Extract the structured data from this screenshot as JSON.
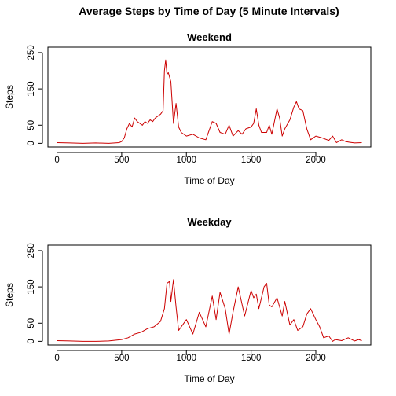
{
  "title": "Average Steps by Time of Day (5 Minute Intervals)",
  "colors": {
    "line": "#cc0000",
    "axis": "#000000"
  },
  "chart_data": [
    {
      "type": "line",
      "title": "Weekend",
      "xlabel": "Time of Day",
      "ylabel": "Steps",
      "xlim": [
        -70,
        2425
      ],
      "ylim": [
        -10,
        265
      ],
      "xticks": [
        0,
        500,
        1000,
        1500,
        2000
      ],
      "yticks": [
        0,
        50,
        150,
        250
      ],
      "grid": false,
      "series": [
        {
          "x": [
            0,
            100,
            200,
            300,
            400,
            480,
            500,
            520,
            540,
            560,
            580,
            600,
            620,
            640,
            660,
            680,
            700,
            720,
            740,
            760,
            780,
            800,
            820,
            830,
            840,
            850,
            860,
            880,
            900,
            920,
            940,
            960,
            1000,
            1050,
            1100,
            1150,
            1200,
            1230,
            1260,
            1300,
            1330,
            1360,
            1400,
            1430,
            1460,
            1500,
            1520,
            1540,
            1560,
            1580,
            1620,
            1640,
            1660,
            1700,
            1720,
            1740,
            1760,
            1800,
            1830,
            1850,
            1870,
            1900,
            1930,
            1960,
            2000,
            2050,
            2100,
            2130,
            2160,
            2200,
            2230,
            2260,
            2300,
            2355
          ],
          "y": [
            2,
            1,
            0,
            1,
            0,
            2,
            5,
            15,
            40,
            55,
            45,
            70,
            60,
            55,
            50,
            60,
            55,
            65,
            60,
            70,
            75,
            80,
            90,
            200,
            230,
            190,
            195,
            170,
            55,
            110,
            45,
            30,
            20,
            25,
            15,
            10,
            60,
            55,
            30,
            25,
            50,
            20,
            35,
            25,
            40,
            45,
            55,
            95,
            50,
            30,
            30,
            50,
            25,
            95,
            70,
            20,
            40,
            65,
            100,
            115,
            95,
            90,
            40,
            10,
            20,
            15,
            8,
            20,
            2,
            10,
            5,
            3,
            1,
            2
          ]
        }
      ]
    },
    {
      "type": "line",
      "title": "Weekday",
      "xlabel": "Time of Day",
      "ylabel": "Steps",
      "xlim": [
        -70,
        2425
      ],
      "ylim": [
        -10,
        265
      ],
      "xticks": [
        0,
        500,
        1000,
        1500,
        2000
      ],
      "yticks": [
        0,
        50,
        150,
        250
      ],
      "grid": false,
      "series": [
        {
          "x": [
            0,
            100,
            200,
            300,
            400,
            450,
            500,
            550,
            600,
            650,
            700,
            750,
            800,
            830,
            850,
            870,
            880,
            900,
            920,
            940,
            960,
            1000,
            1050,
            1100,
            1150,
            1200,
            1230,
            1260,
            1300,
            1330,
            1360,
            1400,
            1450,
            1500,
            1520,
            1540,
            1560,
            1600,
            1620,
            1640,
            1660,
            1700,
            1740,
            1760,
            1800,
            1830,
            1860,
            1900,
            1930,
            1960,
            2000,
            2030,
            2060,
            2100,
            2130,
            2150,
            2200,
            2250,
            2300,
            2330,
            2355
          ],
          "y": [
            2,
            1,
            0,
            0,
            1,
            3,
            5,
            10,
            20,
            25,
            35,
            40,
            55,
            90,
            160,
            165,
            110,
            170,
            95,
            30,
            40,
            60,
            20,
            80,
            40,
            125,
            60,
            135,
            90,
            20,
            80,
            150,
            70,
            140,
            120,
            130,
            90,
            150,
            160,
            100,
            95,
            120,
            70,
            110,
            45,
            60,
            30,
            40,
            75,
            90,
            60,
            40,
            10,
            15,
            0,
            5,
            2,
            10,
            1,
            5,
            2
          ]
        }
      ]
    }
  ]
}
